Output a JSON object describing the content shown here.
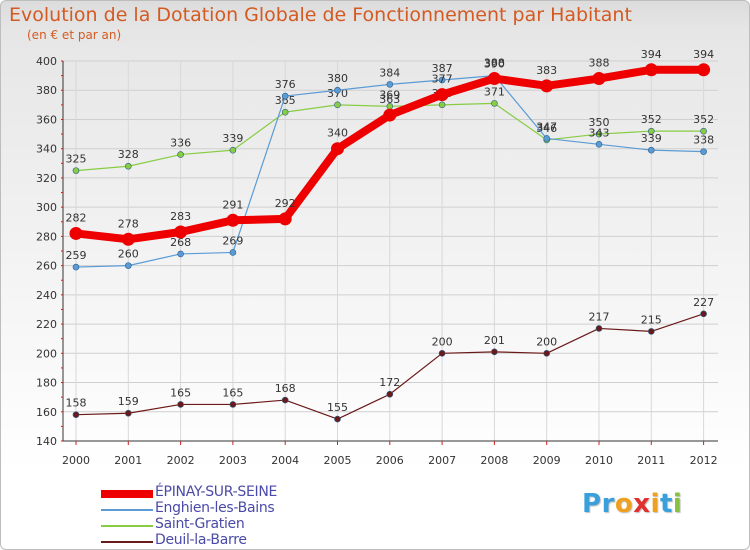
{
  "title": "Evolution de la Dotation Globale de Fonctionnement par Habitant",
  "subtitle": "(en € et par an)",
  "logo": {
    "letters": [
      "P",
      "r",
      "o",
      "x",
      "i",
      "t",
      "i"
    ],
    "colors": [
      "#3aa0dc",
      "#3aa0dc",
      "#f0a020",
      "#e03030",
      "#f0a020",
      "#3aa0dc",
      "#88c040"
    ]
  },
  "chart_data": {
    "type": "line",
    "title": "Evolution de la Dotation Globale de Fonctionnement par Habitant",
    "subtitle": "(en € et par an)",
    "xlabel": "",
    "ylabel": "",
    "x": [
      "2000",
      "2001",
      "2002",
      "2003",
      "2004",
      "2005",
      "2006",
      "2007",
      "2008",
      "2009",
      "2010",
      "2011",
      "2012"
    ],
    "ylim": [
      140,
      400
    ],
    "yticks": [
      "140",
      "160",
      "180",
      "200",
      "220",
      "240",
      "260",
      "280",
      "300",
      "320",
      "340",
      "360",
      "380",
      "400"
    ],
    "grid": true,
    "legend_position": "bottom-left",
    "series": [
      {
        "name": "Saint-Gratien",
        "color": "#88cc44",
        "values": [
          325,
          328,
          336,
          339,
          365,
          370,
          369,
          370,
          371,
          346,
          350,
          352,
          352
        ],
        "labels": [
          "325",
          "328",
          "336",
          "339",
          "365",
          "370",
          "369",
          "370",
          "371",
          "346",
          "350",
          "352",
          "352"
        ]
      },
      {
        "name": "Enghien-les-Bains",
        "color": "#5b9bd5",
        "values": [
          259,
          260,
          268,
          269,
          376,
          380,
          384,
          387,
          390,
          347,
          343,
          339,
          338
        ],
        "labels": [
          "259",
          "260",
          "268",
          "269",
          "376",
          "380",
          "384",
          "387",
          "390",
          "347",
          "343",
          "339",
          "338"
        ]
      },
      {
        "name": "Deuil-la-Barre",
        "color": "#6b1a1a",
        "values": [
          158,
          159,
          165,
          165,
          168,
          155,
          172,
          200,
          201,
          200,
          217,
          215,
          227
        ],
        "labels": [
          "158",
          "159",
          "165",
          "165",
          "168",
          "155",
          "172",
          "200",
          "201",
          "200",
          "217",
          "215",
          "227"
        ]
      },
      {
        "name": "ÉPINAY-SUR-SEINE",
        "color": "#ee0000",
        "values": [
          282,
          278,
          283,
          291,
          292,
          340,
          363,
          377,
          388,
          383,
          388,
          394,
          394
        ],
        "labels": [
          "282",
          "278",
          "283",
          "291",
          "292",
          "340",
          "363",
          "377",
          "388",
          "383",
          "388",
          "394",
          "394"
        ]
      }
    ],
    "legend": [
      "ÉPINAY-SUR-SEINE",
      "Enghien-les-Bains",
      "Saint-Gratien",
      "Deuil-la-Barre"
    ]
  }
}
